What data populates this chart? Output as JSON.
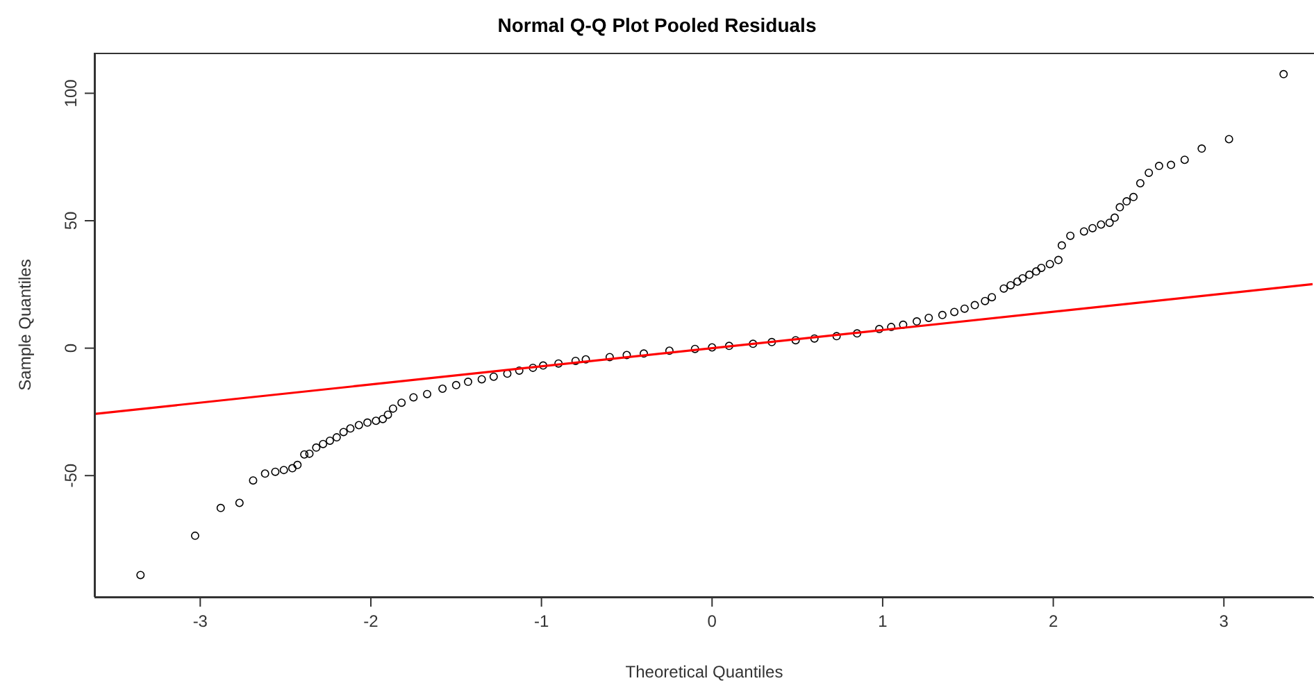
{
  "chart_data": {
    "type": "scatter",
    "title": "Normal Q-Q Plot Pooled Residuals",
    "xlabel": "Theoretical Quantiles",
    "ylabel": "Sample Quantiles",
    "xlim": [
      -3.62,
      3.52
    ],
    "ylim": [
      -97.6,
      115.9
    ],
    "xticks": [
      -3,
      -2,
      -1,
      0,
      1,
      2,
      3
    ],
    "yticks": [
      -50,
      0,
      50,
      100
    ],
    "series": [
      {
        "color": "#000000",
        "marker": "circle",
        "x": [
          -3.35,
          -3.03,
          -2.88,
          -2.77,
          -2.69,
          -2.62,
          -2.56,
          -2.51,
          -2.46,
          -2.43,
          -2.39,
          -2.36,
          -2.32,
          -2.28,
          -2.24,
          -2.2,
          -2.16,
          -2.12,
          -2.07,
          -2.02,
          -1.97,
          -1.93,
          -1.9,
          -1.87,
          -1.82,
          -1.75,
          -1.67,
          -1.58,
          -1.43,
          -1.28,
          -1.13,
          -0.99,
          -0.74,
          -0.5,
          -0.25,
          0,
          0.24,
          0.49,
          0.73,
          0.98,
          1.12,
          1.27,
          1.42,
          1.54,
          1.64,
          1.71,
          1.79,
          1.86,
          1.93,
          2.03,
          2.05,
          2.1,
          2.18,
          2.23,
          2.28,
          2.33,
          2.36,
          2.39,
          2.43,
          2.47,
          2.51,
          2.56,
          2.62,
          2.69,
          2.77,
          2.87,
          3.03,
          3.35,
          -1.5,
          -1.35,
          -1.2,
          -1.05,
          -0.9,
          -0.8,
          -0.6,
          -0.4,
          -0.1,
          0.1,
          0.35,
          0.6,
          0.85,
          1.05,
          1.2,
          1.35,
          1.48,
          1.6,
          1.75,
          1.82,
          1.9,
          1.98
        ],
        "values": [
          -89,
          -73.6,
          -62.7,
          -60.7,
          -51.9,
          -49.2,
          -48.5,
          -47.8,
          -47.1,
          -45.8,
          -41.7,
          -41.4,
          -39,
          -37.6,
          -36.3,
          -35,
          -32.9,
          -31.5,
          -30.2,
          -29.2,
          -28.5,
          -27.8,
          -26.1,
          -23.7,
          -21.4,
          -19.3,
          -18,
          -15.9,
          -13.2,
          -11.2,
          -8.8,
          -6.8,
          -4.4,
          -2.7,
          -1,
          0.3,
          1.7,
          3.1,
          4.7,
          7.5,
          9.2,
          11.9,
          14.2,
          16.9,
          20,
          23.4,
          26.1,
          28.8,
          31.5,
          34.6,
          40.3,
          44.1,
          45.8,
          47.1,
          48.5,
          49.2,
          51.2,
          55.3,
          57.6,
          59.3,
          64.7,
          68.8,
          71.5,
          71.9,
          73.9,
          78.3,
          82,
          107.5,
          -14.5,
          -12.2,
          -10,
          -7.7,
          -6,
          -5,
          -3.5,
          -2.1,
          -0.3,
          0.9,
          2.4,
          3.8,
          5.8,
          8.3,
          10.5,
          13,
          15.5,
          18.5,
          24.7,
          27.4,
          30.1,
          33
        ]
      },
      {
        "type": "line",
        "color": "#ff0000",
        "x": [
          -3.62,
          3.52
        ],
        "values": [
          -25.8,
          25.1
        ]
      }
    ]
  }
}
